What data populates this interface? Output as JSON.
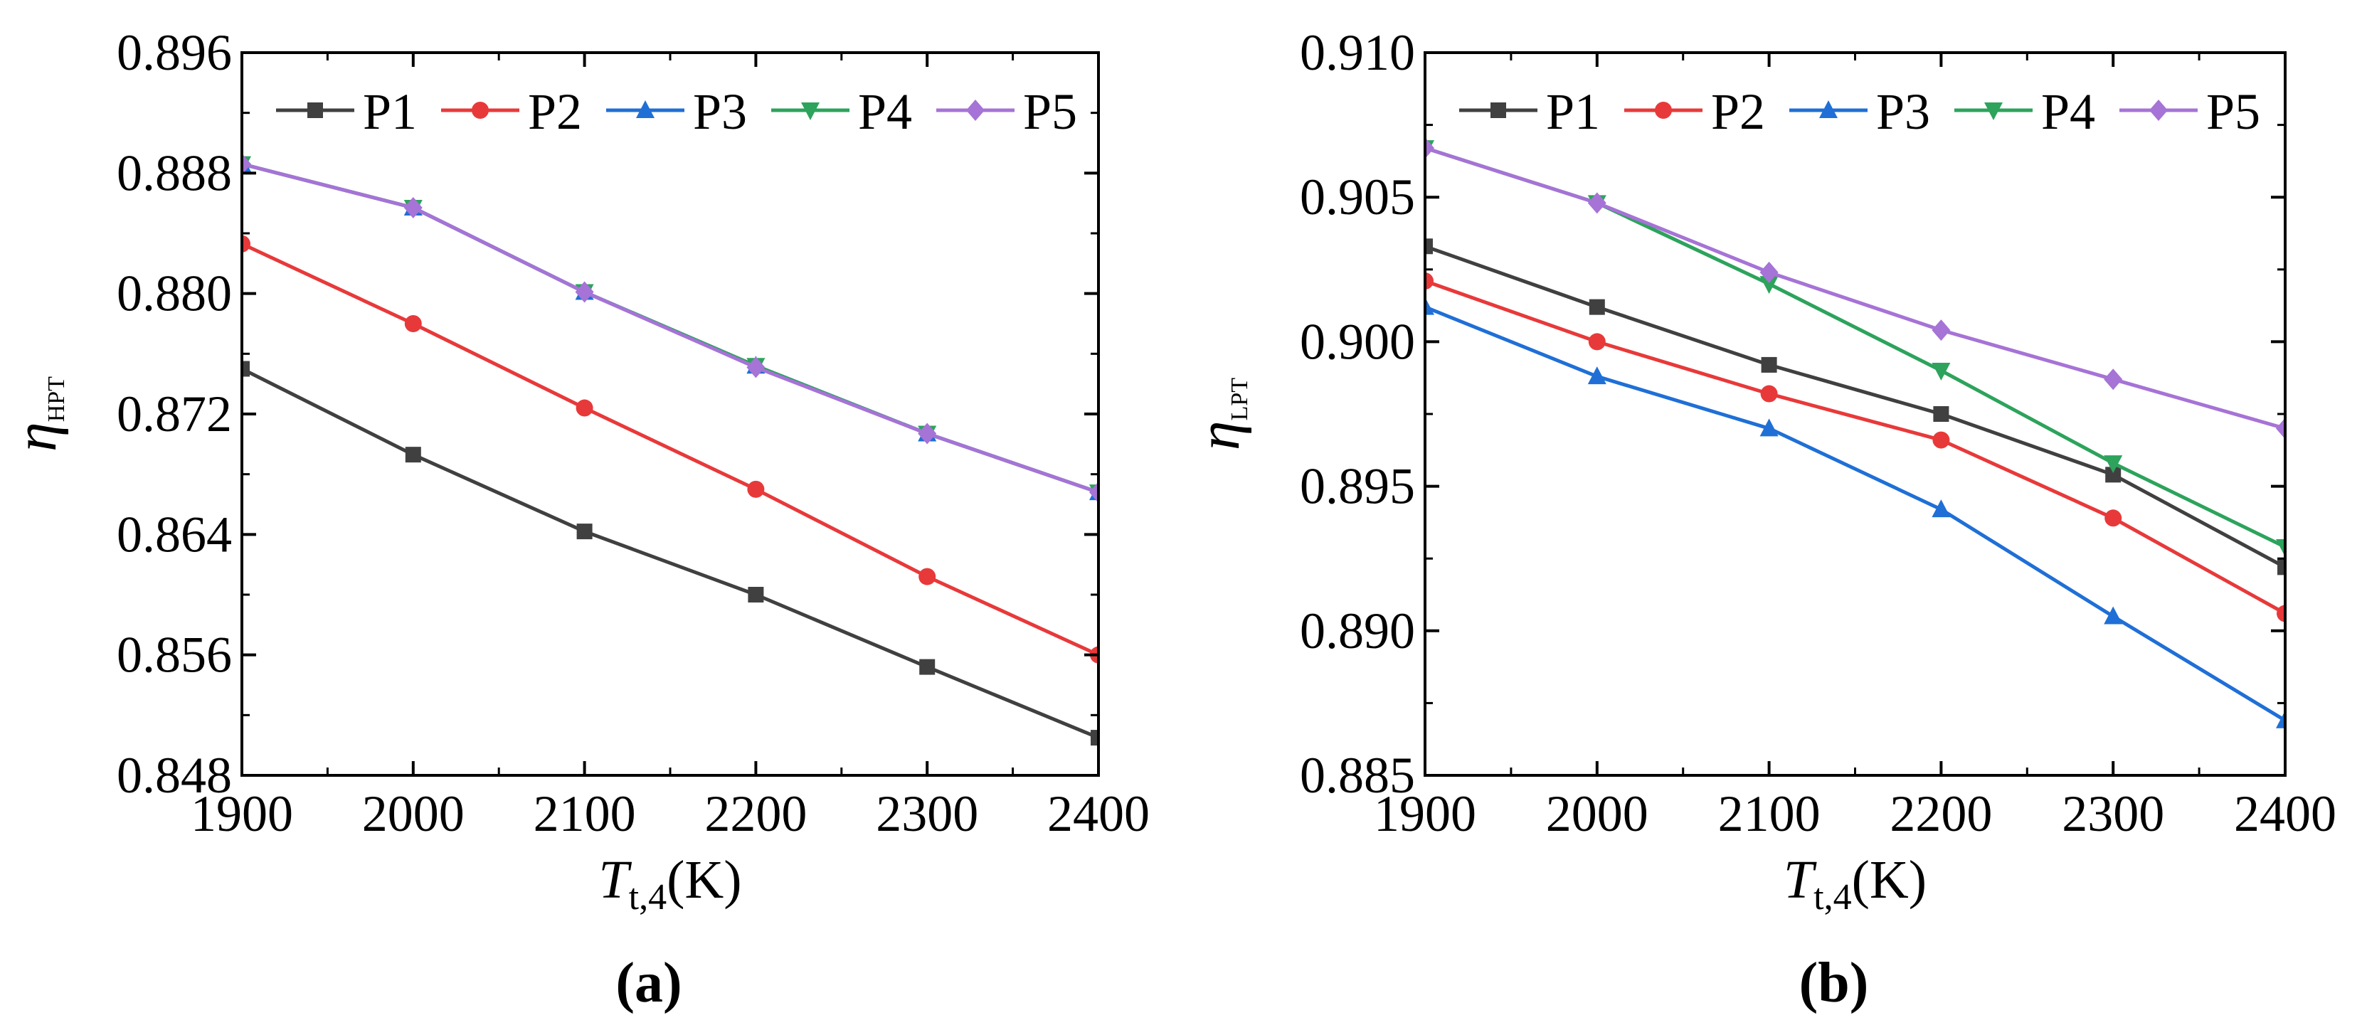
{
  "colors": {
    "P1": "#404040",
    "P2": "#e8393a",
    "P3": "#1f6fd6",
    "P4": "#2da35c",
    "P5": "#a673d6"
  },
  "chart_data": [
    {
      "type": "line",
      "panel_label": "(a)",
      "xlabel": {
        "main": "T",
        "sub": "t,4",
        "unit": "(K)"
      },
      "ylabel": {
        "main": "η",
        "sub": "HPT"
      },
      "xlim": [
        1900,
        2400
      ],
      "ylim": [
        0.848,
        0.896
      ],
      "xticks": [
        "1900",
        "2000",
        "2100",
        "2200",
        "2300",
        "2400"
      ],
      "yticks": [
        "0.848",
        "0.856",
        "0.864",
        "0.872",
        "0.880",
        "0.888",
        "0.896"
      ],
      "legend": {
        "position": "top",
        "entries": [
          "P1",
          "P2",
          "P3",
          "P4",
          "P5"
        ]
      },
      "x": [
        1900,
        2000,
        2100,
        2200,
        2300,
        2400
      ],
      "series": [
        {
          "name": "P1",
          "marker": "square",
          "values": [
            0.875,
            0.8693,
            0.8642,
            0.86,
            0.8552,
            0.8505
          ]
        },
        {
          "name": "P2",
          "marker": "circle",
          "values": [
            0.8833,
            0.878,
            0.8724,
            0.867,
            0.8612,
            0.856
          ]
        },
        {
          "name": "P3",
          "marker": "triangle-up",
          "values": [
            0.8886,
            0.8857,
            0.8801,
            0.8752,
            0.8707,
            0.8668
          ]
        },
        {
          "name": "P4",
          "marker": "triangle-down",
          "values": [
            0.8886,
            0.8857,
            0.8801,
            0.8752,
            0.8707,
            0.8668
          ]
        },
        {
          "name": "P5",
          "marker": "diamond",
          "values": [
            0.8886,
            0.8857,
            0.8801,
            0.8751,
            0.8707,
            0.8668
          ]
        }
      ]
    },
    {
      "type": "line",
      "panel_label": "(b)",
      "xlabel": {
        "main": "T",
        "sub": "t,4",
        "unit": "(K)"
      },
      "ylabel": {
        "main": "η",
        "sub": "LPT"
      },
      "xlim": [
        1900,
        2400
      ],
      "ylim": [
        0.885,
        0.91
      ],
      "xticks": [
        "1900",
        "2000",
        "2100",
        "2200",
        "2300",
        "2400"
      ],
      "yticks": [
        "0.885",
        "0.890",
        "0.895",
        "0.900",
        "0.905",
        "0.910"
      ],
      "legend": {
        "position": "top",
        "entries": [
          "P1",
          "P2",
          "P3",
          "P4",
          "P5"
        ]
      },
      "x": [
        1900,
        2000,
        2100,
        2200,
        2300,
        2400
      ],
      "series": [
        {
          "name": "P1",
          "marker": "square",
          "values": [
            0.9033,
            0.9012,
            0.8992,
            0.8975,
            0.8954,
            0.8922
          ]
        },
        {
          "name": "P2",
          "marker": "circle",
          "values": [
            0.9021,
            0.9,
            0.8982,
            0.8966,
            0.8939,
            0.8906
          ]
        },
        {
          "name": "P3",
          "marker": "triangle-up",
          "values": [
            0.9012,
            0.8988,
            0.897,
            0.8942,
            0.8905,
            0.8869
          ]
        },
        {
          "name": "P4",
          "marker": "triangle-down",
          "values": [
            0.9067,
            0.9048,
            0.902,
            0.899,
            0.8958,
            0.8929
          ]
        },
        {
          "name": "P5",
          "marker": "diamond",
          "values": [
            0.9067,
            0.9048,
            0.9024,
            0.9004,
            0.8987,
            0.897
          ]
        }
      ]
    }
  ]
}
